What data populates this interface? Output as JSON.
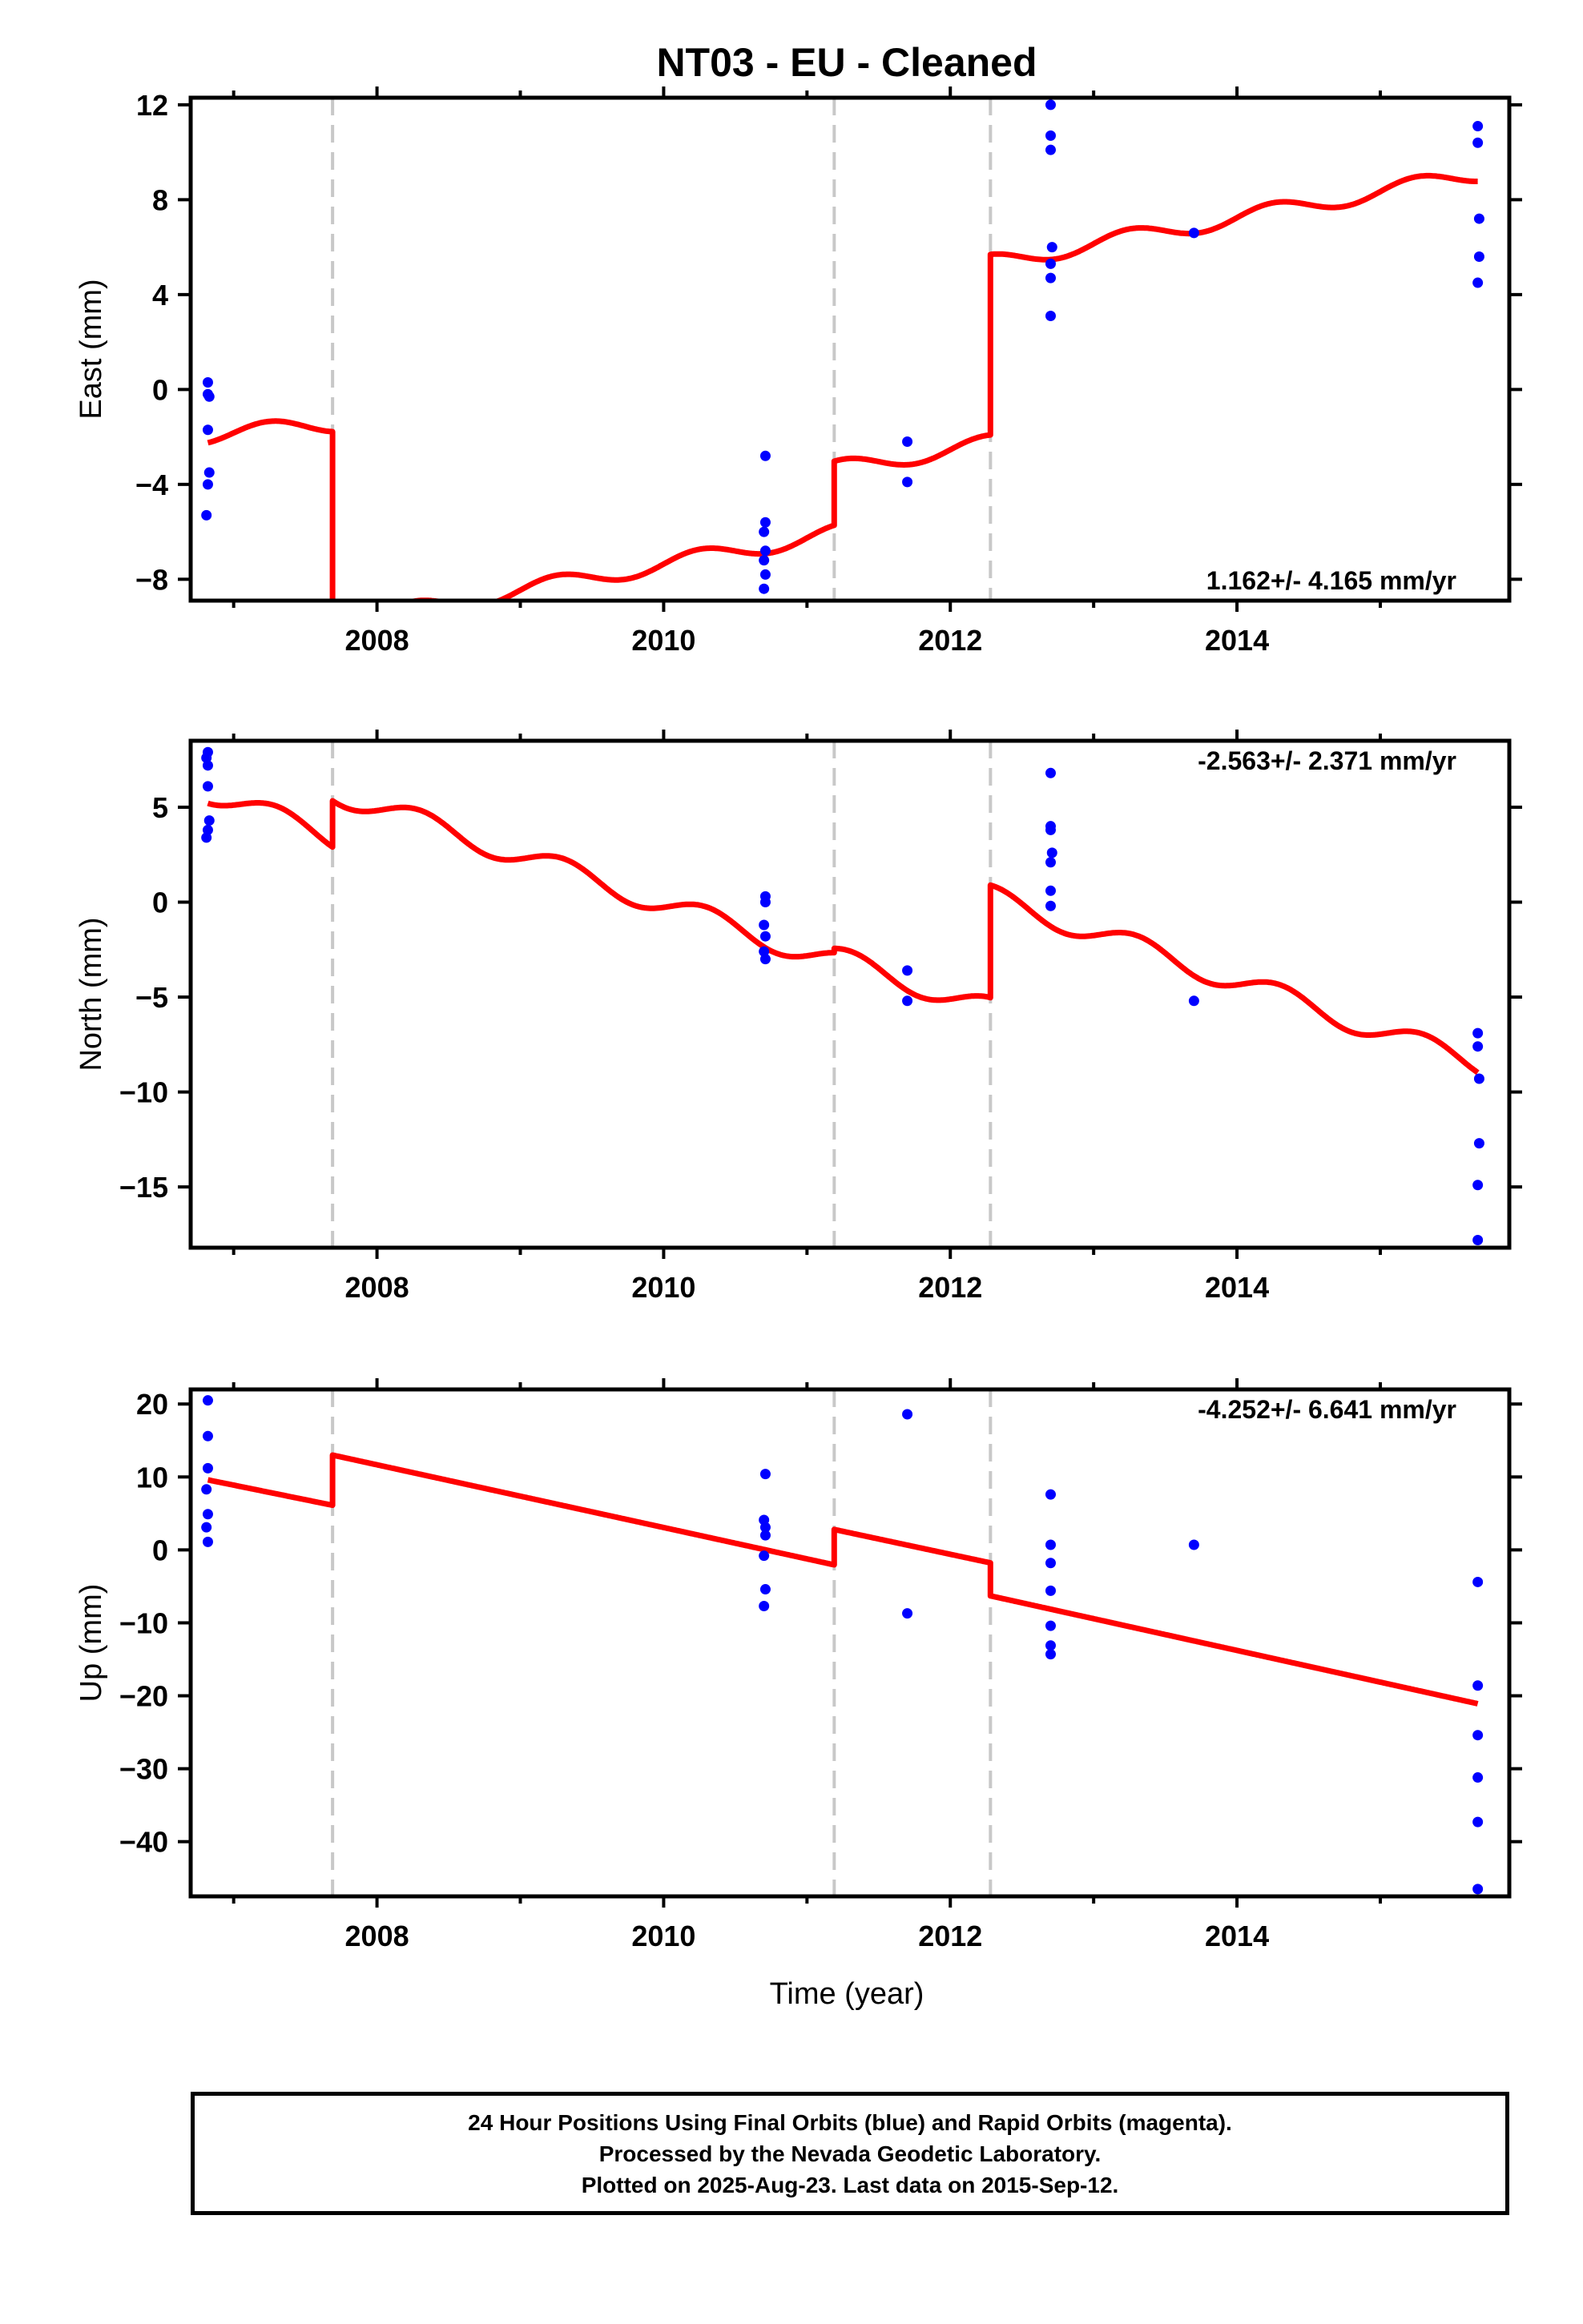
{
  "chart_data": {
    "type": "scatter",
    "title": "NT03  - EU - Cleaned",
    "xlabel": "Time (year)",
    "xlim": [
      2006.7,
      2015.9
    ],
    "x_ticks": [
      2008,
      2010,
      2012,
      2014
    ],
    "x_tick_labels": [
      "2008",
      "2010",
      "2012",
      "2014"
    ],
    "break_epochs": [
      2007.69,
      2011.19,
      2012.28
    ],
    "grid": false,
    "colors": {
      "observations": "#0000ff",
      "model": "#ff0000",
      "breaks": "#c8c8c8",
      "frame": "#000000"
    },
    "panels": [
      {
        "name": "east",
        "ylabel": "East (mm)",
        "ylim": [
          -8.9,
          12.3
        ],
        "y_ticks": [
          -8,
          -4,
          0,
          4,
          8,
          12
        ],
        "y_tick_labels": [
          "−8",
          "−4",
          "0",
          "4",
          "8",
          "12"
        ],
        "annotation": "1.162+/- 4.165 mm/yr",
        "annotation_position": "bottom-right",
        "points": [
          [
            2006.82,
            0.3
          ],
          [
            2006.82,
            -0.2
          ],
          [
            2006.83,
            -0.3
          ],
          [
            2006.82,
            -1.7
          ],
          [
            2006.83,
            -3.5
          ],
          [
            2006.82,
            -4.0
          ],
          [
            2006.81,
            -5.3
          ],
          [
            2010.71,
            -2.8
          ],
          [
            2010.71,
            -5.6
          ],
          [
            2010.7,
            -6.0
          ],
          [
            2010.71,
            -6.8
          ],
          [
            2010.7,
            -7.2
          ],
          [
            2010.71,
            -7.8
          ],
          [
            2010.7,
            -8.4
          ],
          [
            2011.7,
            -2.2
          ],
          [
            2011.7,
            -3.9
          ],
          [
            2012.7,
            12.0
          ],
          [
            2012.7,
            10.7
          ],
          [
            2012.7,
            10.1
          ],
          [
            2012.71,
            6.0
          ],
          [
            2012.7,
            5.3
          ],
          [
            2012.7,
            4.7
          ],
          [
            2012.7,
            3.1
          ],
          [
            2013.7,
            6.6
          ],
          [
            2015.68,
            11.1
          ],
          [
            2015.68,
            10.4
          ],
          [
            2015.69,
            7.2
          ],
          [
            2015.69,
            5.6
          ],
          [
            2015.68,
            4.5
          ]
        ],
        "model": {
          "segments": [
            {
              "start": 2006.82,
              "end": 2007.69,
              "offset": -1.93,
              "rate": 0.55
            },
            {
              "start": 2007.69,
              "end": 2011.19,
              "offset": -9.9,
              "rate": 1.1
            },
            {
              "start": 2011.19,
              "end": 2012.28,
              "offset": -3.35,
              "rate": 1.0
            },
            {
              "start": 2012.28,
              "end": 2015.68,
              "offset": 5.35,
              "rate": 1.1
            }
          ],
          "annual_amplitude": 0.35,
          "annual_phase": 0.0
        }
      },
      {
        "name": "north",
        "ylabel": "North (mm)",
        "ylim": [
          -18.2,
          8.5
        ],
        "y_ticks": [
          -15,
          -10,
          -5,
          0,
          5
        ],
        "y_tick_labels": [
          "−15",
          "−10",
          "−5",
          "0",
          "5"
        ],
        "annotation": "-2.563+/- 2.371 mm/yr",
        "annotation_position": "top-right",
        "points": [
          [
            2006.82,
            7.9
          ],
          [
            2006.81,
            7.6
          ],
          [
            2006.82,
            7.2
          ],
          [
            2006.82,
            6.1
          ],
          [
            2006.83,
            4.3
          ],
          [
            2006.82,
            3.8
          ],
          [
            2006.81,
            3.4
          ],
          [
            2010.71,
            0.3
          ],
          [
            2010.71,
            0.0
          ],
          [
            2010.7,
            -1.2
          ],
          [
            2010.71,
            -1.8
          ],
          [
            2010.7,
            -2.6
          ],
          [
            2010.71,
            -3.0
          ],
          [
            2011.7,
            -3.6
          ],
          [
            2011.7,
            -5.2
          ],
          [
            2012.7,
            6.8
          ],
          [
            2012.7,
            4.0
          ],
          [
            2012.7,
            3.8
          ],
          [
            2012.71,
            2.6
          ],
          [
            2012.7,
            2.1
          ],
          [
            2012.7,
            0.6
          ],
          [
            2012.7,
            -0.2
          ],
          [
            2013.7,
            -5.2
          ],
          [
            2015.68,
            -6.9
          ],
          [
            2015.68,
            -7.6
          ],
          [
            2015.69,
            -9.3
          ],
          [
            2015.69,
            -12.7
          ],
          [
            2015.68,
            -14.9
          ],
          [
            2015.68,
            -17.8
          ]
        ],
        "model": {
          "segments": [
            {
              "start": 2006.82,
              "end": 2007.69,
              "offset": 5.8,
              "rate": -2.8
            },
            {
              "start": 2007.69,
              "end": 2011.19,
              "offset": 5.8,
              "rate": -2.55
            },
            {
              "start": 2011.19,
              "end": 2012.28,
              "offset": -2.9,
              "rate": -2.5
            },
            {
              "start": 2012.28,
              "end": 2015.68,
              "offset": 0.3,
              "rate": -2.6
            }
          ],
          "annual_amplitude": 0.6,
          "annual_phase": 0.05
        }
      },
      {
        "name": "up",
        "ylabel": "Up (mm)",
        "ylim": [
          -47.5,
          22
        ],
        "y_ticks": [
          -40,
          -30,
          -20,
          -10,
          0,
          10,
          20
        ],
        "y_tick_labels": [
          "−40",
          "−30",
          "−20",
          "−10",
          "0",
          "10",
          "20"
        ],
        "annotation": "-4.252+/- 6.641 mm/yr",
        "annotation_position": "top-right",
        "points": [
          [
            2006.82,
            20.5
          ],
          [
            2006.82,
            15.6
          ],
          [
            2006.82,
            11.2
          ],
          [
            2006.81,
            8.3
          ],
          [
            2006.82,
            4.9
          ],
          [
            2006.81,
            3.1
          ],
          [
            2006.82,
            1.1
          ],
          [
            2010.71,
            10.4
          ],
          [
            2010.7,
            4.1
          ],
          [
            2010.71,
            3.1
          ],
          [
            2010.71,
            2.0
          ],
          [
            2010.7,
            -0.8
          ],
          [
            2010.71,
            -5.4
          ],
          [
            2010.7,
            -7.7
          ],
          [
            2011.7,
            18.6
          ],
          [
            2011.7,
            -8.7
          ],
          [
            2012.7,
            7.6
          ],
          [
            2012.7,
            0.7
          ],
          [
            2012.7,
            -1.8
          ],
          [
            2012.7,
            -5.6
          ],
          [
            2012.7,
            -10.4
          ],
          [
            2012.7,
            -13.1
          ],
          [
            2012.7,
            -14.3
          ],
          [
            2013.7,
            0.7
          ],
          [
            2015.68,
            -4.4
          ],
          [
            2015.68,
            -18.6
          ],
          [
            2015.68,
            -25.4
          ],
          [
            2015.68,
            -31.2
          ],
          [
            2015.68,
            -37.3
          ],
          [
            2015.68,
            -46.5
          ]
        ],
        "model": {
          "segments": [
            {
              "start": 2006.82,
              "end": 2007.69,
              "offset": 9.6,
              "rate": -4.0
            },
            {
              "start": 2007.69,
              "end": 2011.19,
              "offset": 13.0,
              "rate": -4.3
            },
            {
              "start": 2011.19,
              "end": 2012.28,
              "offset": 2.8,
              "rate": -4.2
            },
            {
              "start": 2012.28,
              "end": 2015.68,
              "offset": -6.3,
              "rate": -4.35
            }
          ],
          "annual_amplitude": 0.0,
          "annual_phase": 0.0
        }
      }
    ]
  },
  "footer": {
    "line1": "24 Hour Positions Using Final Orbits (blue) and Rapid Orbits (magenta).",
    "line2": "Processed by the Nevada Geodetic Laboratory.",
    "line3": "Plotted on 2025-Aug-23. Last data on 2015-Sep-12."
  }
}
